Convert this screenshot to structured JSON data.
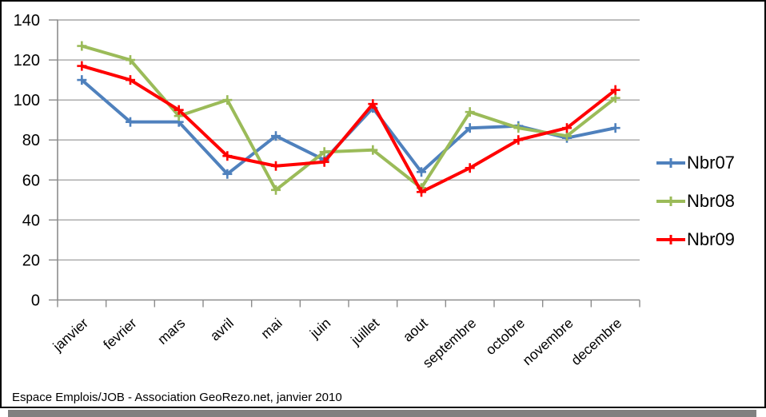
{
  "window": {
    "footer": "Espace Emplois/JOB - Association GeoRezo.net, janvier 2010"
  },
  "chart_data": {
    "type": "line",
    "title": "",
    "xlabel": "",
    "ylabel": "",
    "categories": [
      "janvier",
      "fevrier",
      "mars",
      "avril",
      "mai",
      "juin",
      "juillet",
      "aout",
      "septembre",
      "octobre",
      "novembre",
      "decembre"
    ],
    "series": [
      {
        "name": "Nbr07",
        "color": "#4F81BD",
        "marker": "plus",
        "values": [
          110,
          89,
          89,
          63,
          82,
          70,
          96,
          64,
          86,
          87,
          81,
          86
        ]
      },
      {
        "name": "Nbr08",
        "color": "#9BBB59",
        "marker": "plus",
        "values": [
          127,
          120,
          92,
          100,
          55,
          74,
          75,
          56,
          94,
          86,
          82,
          101
        ]
      },
      {
        "name": "Nbr09",
        "color": "#FF0000",
        "marker": "plus",
        "values": [
          117,
          110,
          95,
          72,
          67,
          69,
          98,
          54,
          66,
          80,
          86,
          105
        ]
      }
    ],
    "ylim": [
      0,
      140
    ],
    "yticks": [
      0,
      20,
      40,
      60,
      80,
      100,
      120,
      140
    ],
    "grid": "horizontal",
    "legend_position": "right",
    "x_label_rotation_deg": -42,
    "colors": {
      "grid_line": "#A6A6A6",
      "axis_line": "#8C8C8C",
      "tick_label": "#000000",
      "window_border": "#000000",
      "window_shadow": "#808080",
      "background": "#FFFFFF"
    }
  }
}
